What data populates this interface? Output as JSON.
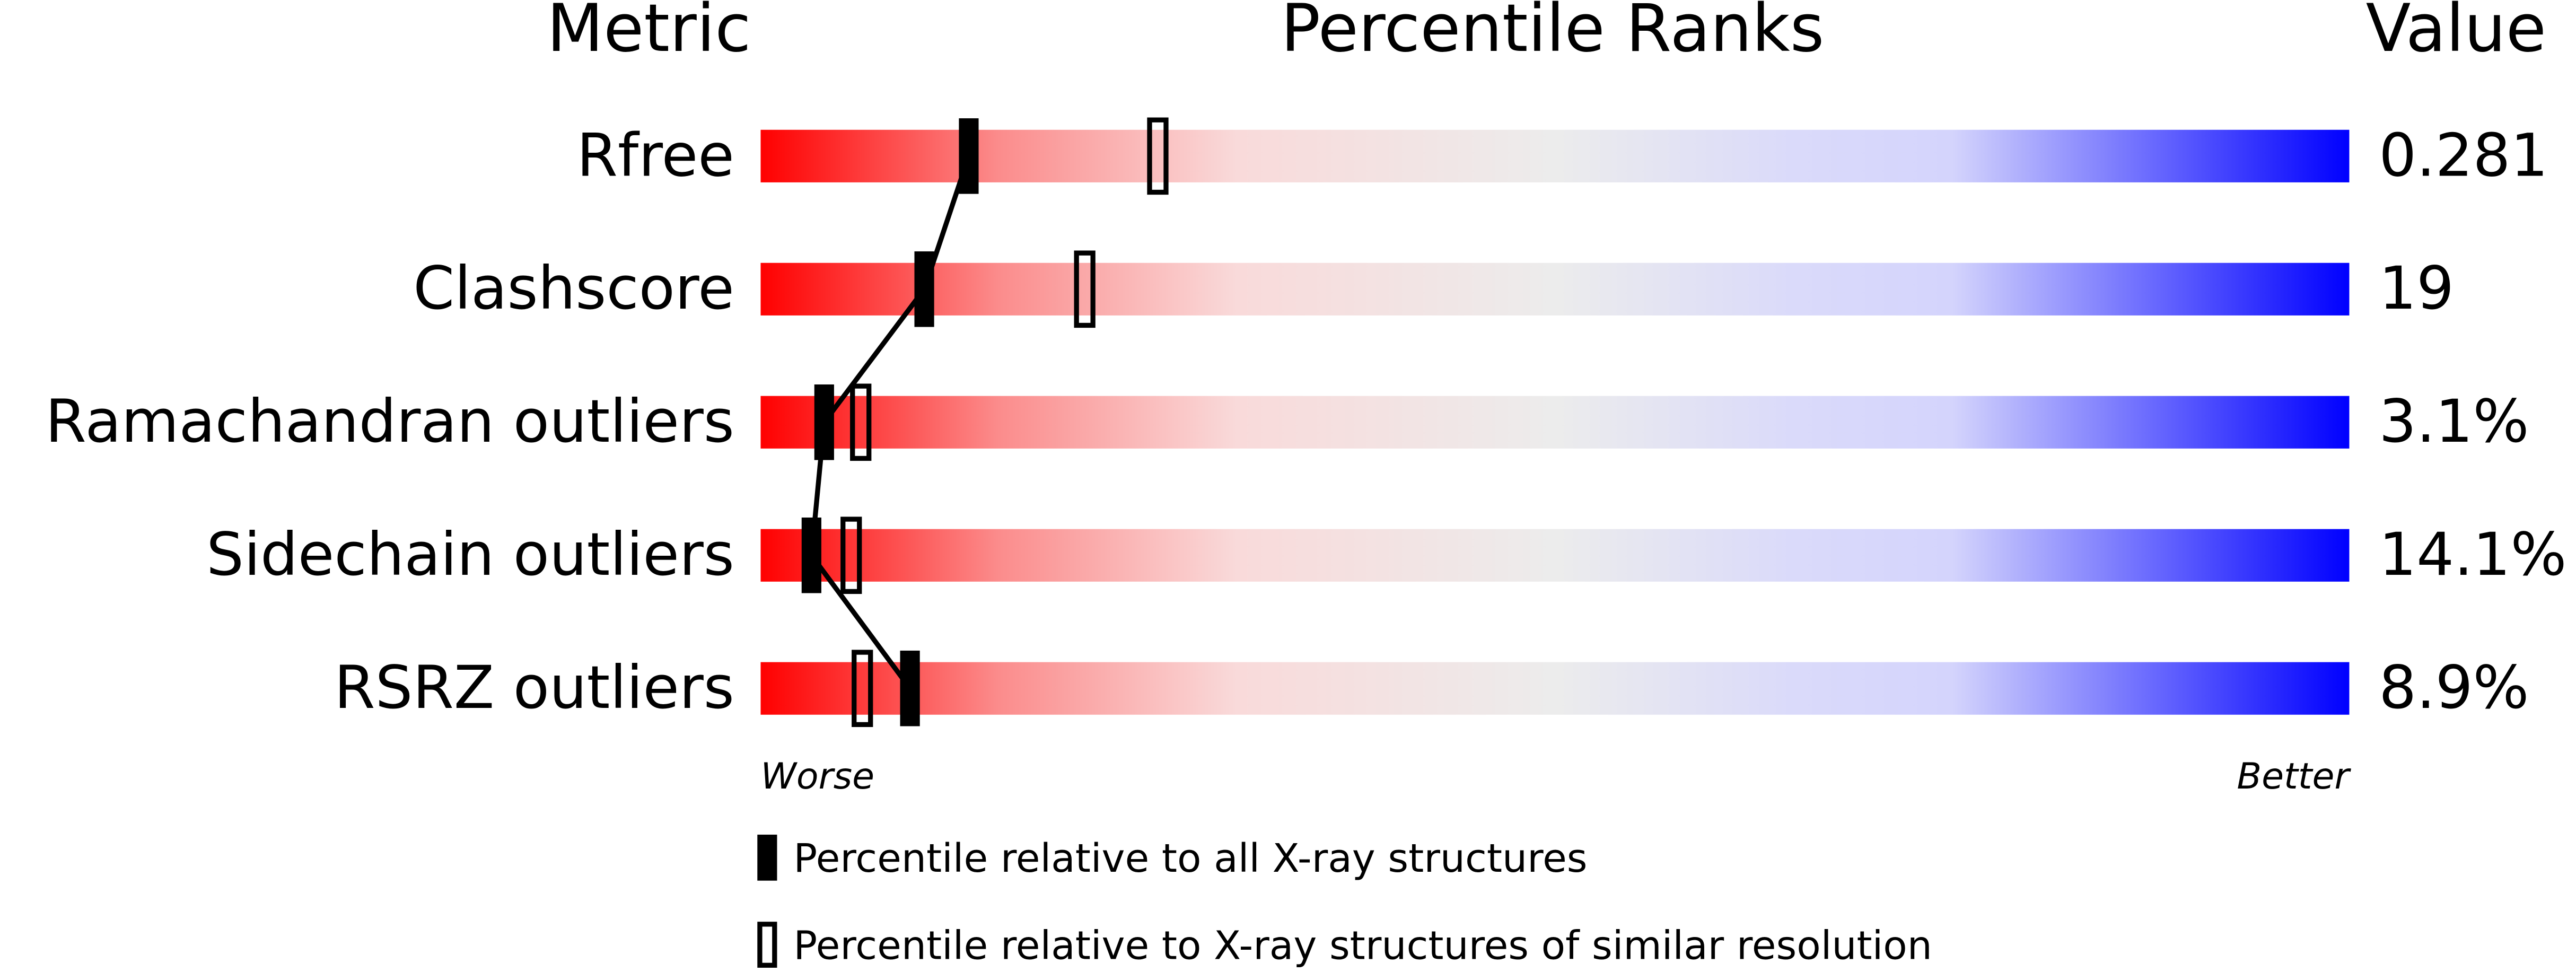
{
  "chart_data": {
    "type": "percentile",
    "column_headers": [
      "Metric",
      "Percentile Ranks",
      "Value"
    ],
    "categories": [
      "Rfree",
      "Clashscore",
      "Ramachandran outliers",
      "Sidechain outliers",
      "RSRZ outliers"
    ],
    "metric_values": [
      "0.281",
      "19",
      "3.1%",
      "14.1%",
      "8.9%"
    ],
    "series": [
      {
        "name": "Percentile relative to all X-ray structures",
        "color": "#000000",
        "style": "filled",
        "values": [
          13.1,
          10.3,
          4.0,
          3.2,
          9.4
        ]
      },
      {
        "name": "Percentile relative to X-ray structures of similar resolution",
        "color": "#000000",
        "style": "open",
        "values": [
          25.0,
          20.4,
          6.3,
          5.7,
          6.4
        ]
      }
    ],
    "xlim": [
      0,
      100
    ],
    "axis_ends": [
      "Worse",
      "Better"
    ]
  }
}
